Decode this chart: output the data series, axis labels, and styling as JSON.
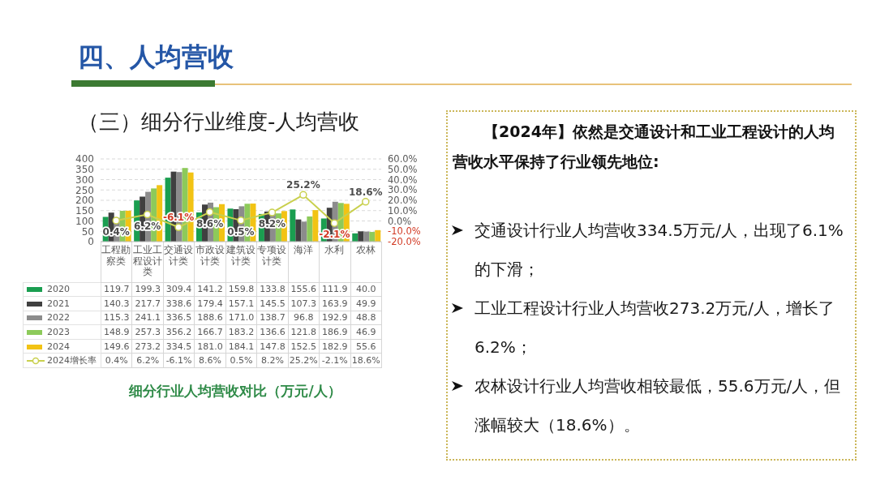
{
  "chart_data": [
    {
      "type": "bar",
      "title": "四、人均营收",
      "subtitle": "（三）细分行业维度-人均营收",
      "annotations": [
        "细分行业人均营收对比（万元/人）"
      ],
      "categories": [
        "工程勘察类",
        "工业工程设计类",
        "交通设计类",
        "市政设计类",
        "建筑设计类",
        "专项设计类",
        "海洋",
        "水利",
        "农林"
      ],
      "series": [
        {
          "name": "2020",
          "color": "#1a9e50",
          "values": [
            119.7,
            199.3,
            309.4,
            141.2,
            159.8,
            133.8,
            155.6,
            111.9,
            40.0
          ],
          "value_labels": [
            "119.7",
            "199.3",
            "309.4",
            "141.2",
            "159.8",
            "133.8",
            "155.6",
            "111.9",
            "40.0"
          ]
        },
        {
          "name": "2021",
          "color": "#404040",
          "values": [
            140.3,
            217.7,
            338.6,
            179.4,
            157.1,
            145.5,
            107.3,
            163.9,
            49.9
          ],
          "value_labels": [
            "140.3",
            "217.7",
            "338.6",
            "179.4",
            "157.1",
            "145.5",
            "107.3",
            "163.9",
            "49.9"
          ]
        },
        {
          "name": "2022",
          "color": "#8c8c8c",
          "values": [
            115.3,
            241.1,
            336.5,
            188.6,
            171.0,
            138.7,
            96.8,
            192.9,
            48.8
          ],
          "value_labels": [
            "115.3",
            "241.1",
            "336.5",
            "188.6",
            "171.0",
            "138.7",
            "96.8",
            "192.9",
            "48.8"
          ]
        },
        {
          "name": "2023",
          "color": "#8dca5a",
          "values": [
            148.9,
            257.3,
            356.2,
            166.7,
            183.2,
            136.6,
            121.8,
            186.9,
            46.9
          ],
          "value_labels": [
            "148.9",
            "257.3",
            "356.2",
            "166.7",
            "183.2",
            "136.6",
            "121.8",
            "186.9",
            "46.9"
          ]
        },
        {
          "name": "2024",
          "color": "#f2c314",
          "values": [
            149.6,
            273.2,
            334.5,
            181.0,
            184.1,
            147.8,
            152.5,
            182.9,
            55.6
          ],
          "value_labels": [
            "149.6",
            "273.2",
            "334.5",
            "181.0",
            "184.1",
            "147.8",
            "152.5",
            "182.9",
            "55.6"
          ]
        },
        {
          "name": "2024增长率",
          "type": "line",
          "axis": "y2",
          "color": "#c9d04e",
          "values": [
            0.4,
            6.2,
            -6.1,
            8.6,
            0.5,
            8.2,
            25.2,
            -2.1,
            18.6
          ],
          "value_labels": [
            "0.4%",
            "6.2%",
            "-6.1%",
            "8.6%",
            "0.5%",
            "8.2%",
            "25.2%",
            "-2.1%",
            "18.6%"
          ]
        }
      ],
      "ylim": [
        0,
        400
      ],
      "yticks": [
        0,
        50,
        100,
        150,
        200,
        250,
        300,
        350,
        400
      ],
      "y2lim": [
        -20,
        60
      ],
      "y2ticks": [
        {
          "value": -20,
          "label": "-20.0%"
        },
        {
          "value": -10,
          "label": "-10.0%"
        },
        {
          "value": 0,
          "label": "0.0%"
        },
        {
          "value": 10,
          "label": "10.0%"
        },
        {
          "value": 20,
          "label": "20.0%"
        },
        {
          "value": 30,
          "label": "30.0%"
        },
        {
          "value": 40,
          "label": "40.0%"
        },
        {
          "value": 50,
          "label": "50.0%"
        },
        {
          "value": 60,
          "label": "60.0%"
        }
      ],
      "grid": "y",
      "legend": "bottom",
      "marker": "circle"
    },
    {
      "type": "other",
      "title": "【2024年】依然是交通设计和工业工程设计的人均营收水平保持了行业领先地位:",
      "annotations": [
        "交通设计行业人均营收334.5万元/人，出现了6.1%的下滑；",
        "工业工程设计行业人均营收273.2万元/人，增长了6.2%；",
        "农林设计行业人均营收相较最低，55.6万元/人，但涨幅较大（18.6%）。"
      ]
    }
  ]
}
